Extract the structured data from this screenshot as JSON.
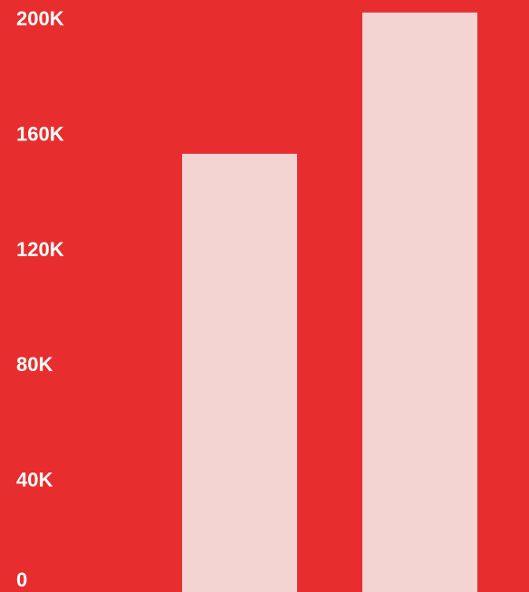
{
  "chart_data": {
    "type": "bar",
    "categories": [
      "",
      ""
    ],
    "values": [
      152000,
      201000
    ],
    "title": "",
    "xlabel": "",
    "ylabel": "",
    "ylim": [
      0,
      200000
    ],
    "yticks": [
      {
        "value": 0,
        "label": "0"
      },
      {
        "value": 40000,
        "label": "40K"
      },
      {
        "value": 80000,
        "label": "80K"
      },
      {
        "value": 120000,
        "label": "120K"
      },
      {
        "value": 160000,
        "label": "160K"
      },
      {
        "value": 200000,
        "label": "200K"
      }
    ],
    "grid": false,
    "legend": "none"
  },
  "colors": {
    "background": "#e72d2d",
    "bar": "#f4d3d3",
    "label": "#ffffff"
  }
}
